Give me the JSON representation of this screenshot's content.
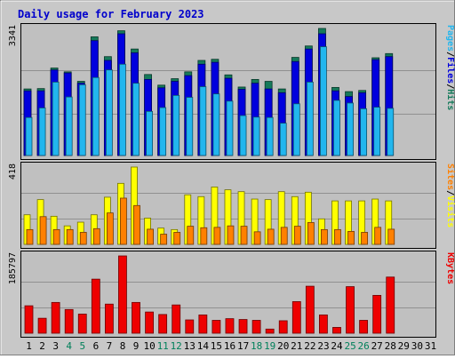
{
  "chart_data": {
    "type": "bar",
    "title": "Daily usage for February 2023",
    "categories": [
      "1",
      "2",
      "3",
      "4",
      "5",
      "6",
      "7",
      "8",
      "9",
      "10",
      "11",
      "12",
      "13",
      "14",
      "15",
      "16",
      "17",
      "18",
      "19",
      "20",
      "21",
      "22",
      "23",
      "24",
      "25",
      "26",
      "27",
      "28",
      "29",
      "30",
      "31"
    ],
    "weekend_days": [
      "4",
      "5",
      "11",
      "12",
      "18",
      "19",
      "25",
      "26"
    ],
    "panels": [
      {
        "name": "hits-files-pages",
        "ymax": 3341,
        "ymax_label": "3341",
        "right_labels": [
          "Pages",
          "/",
          "Files",
          "/",
          "Hits"
        ],
        "series": [
          {
            "name": "Hits",
            "color": "#157A5A",
            "values": [
              1750,
              1760,
              2300,
              2200,
              1950,
              3120,
              2600,
              3280,
              2800,
              2130,
              1850,
              2020,
              2200,
              2500,
              2530,
              2120,
              1800,
              2000,
              1950,
              1750,
              2580,
              2880,
              3341,
              1790,
              1680,
              1710,
              2570,
              2680,
              null,
              null,
              null
            ]
          },
          {
            "name": "Files",
            "color": "#0000DD",
            "values": [
              1700,
              1700,
              2250,
              2170,
              1900,
              3020,
              2500,
              3200,
              2700,
              2000,
              1780,
              1950,
              2100,
              2400,
              2450,
              2030,
              1740,
              1900,
              1750,
              1650,
              2470,
              2800,
              3200,
              1700,
              1550,
              1650,
              2520,
              2600,
              null,
              null,
              null
            ]
          },
          {
            "name": "Pages",
            "color": "#22B6EE",
            "values": [
              1000,
              1250,
              1930,
              1540,
              1860,
              2050,
              2250,
              2400,
              1900,
              1160,
              1260,
              1580,
              1530,
              1810,
              1620,
              1430,
              1050,
              1010,
              1000,
              850,
              1360,
              1930,
              2860,
              1450,
              1380,
              1230,
              1270,
              1240,
              null,
              null,
              null
            ]
          }
        ]
      },
      {
        "name": "visits-sites",
        "ymax": 418,
        "ymax_label": "418",
        "right_labels": [
          "Sites",
          "/",
          "Visits"
        ],
        "series": [
          {
            "name": "Visits",
            "color": "#FFFF00",
            "values": [
              160,
              242,
              152,
              100,
              120,
              160,
              255,
              330,
              418,
              142,
              88,
              80,
              268,
              258,
              310,
              295,
              285,
              245,
              242,
              285,
              258,
              282,
              138,
              235,
              235,
              235,
              245,
              235,
              null,
              null,
              null
            ]
          },
          {
            "name": "Sites",
            "color": "#FF8000",
            "values": [
              80,
              150,
              80,
              80,
              65,
              85,
              170,
              250,
              210,
              82,
              55,
              65,
              98,
              90,
              92,
              100,
              98,
              68,
              82,
              92,
              98,
              118,
              80,
              80,
              70,
              65,
              92,
              82,
              null,
              null,
              null
            ]
          }
        ]
      },
      {
        "name": "kbytes",
        "ymax": 185797,
        "ymax_label": "185797",
        "right_labels": [
          "KBytes"
        ],
        "series": [
          {
            "name": "KBytes",
            "color": "#EE0000",
            "values": [
              66000,
              36000,
              74000,
              57000,
              46000,
              130000,
              70000,
              185797,
              74000,
              51000,
              45000,
              68000,
              32000,
              44000,
              31000,
              35000,
              33000,
              31000,
              10000,
              30000,
              76000,
              113000,
              44000,
              14000,
              112000,
              31000,
              91000,
              135000,
              null,
              null,
              null
            ]
          }
        ]
      }
    ]
  }
}
